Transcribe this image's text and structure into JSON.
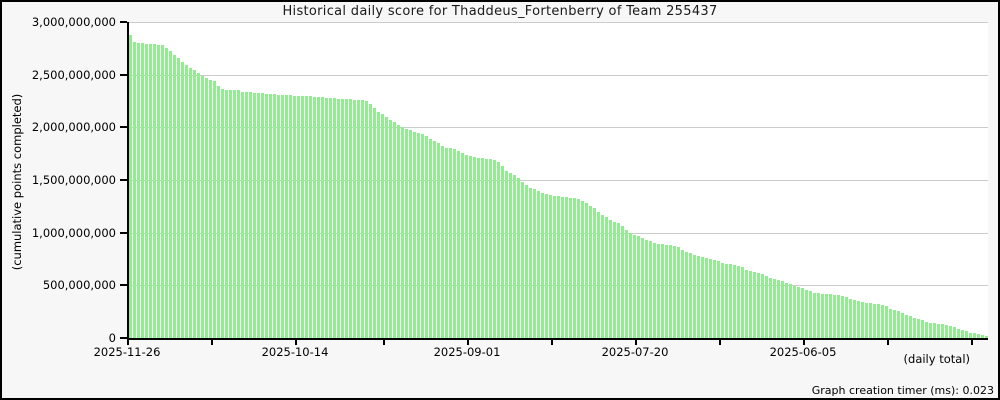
{
  "window": {
    "background": "#f7f7f7",
    "border_color": "#000000"
  },
  "footer": {
    "timer_label": "Graph creation timer (ms): 0.023"
  },
  "chart_data": {
    "type": "bar",
    "title": "Historical daily score for Thaddeus_Fortenberry of Team 255437",
    "ylabel": "(cumulative points completed)",
    "xlabel": "(daily total)",
    "ylim": [
      0,
      3000000000
    ],
    "grid": true,
    "legend": "none",
    "bar_color": "#90EE90",
    "grid_color": "#cccccc",
    "axis_color": "#000000",
    "y_tick_labels": [
      "3,000,000,000",
      "2,500,000,000",
      "2,000,000,000",
      "1,500,000,000",
      "1,000,000,000",
      "500,000,000",
      "0"
    ],
    "x_tick_labels": [
      {
        "label": "2025-11-26",
        "index": 0
      },
      {
        "label": "2025-10-14",
        "index": 42
      },
      {
        "label": "2025-09-01",
        "index": 85
      },
      {
        "label": "2025-07-20",
        "index": 127
      },
      {
        "label": "2025-06-05",
        "index": 169
      }
    ],
    "minor_tick_indices": [
      21,
      64,
      106,
      148,
      190,
      211
    ],
    "value_unit": "billions of points, one bar per day, newest (2025-11-26) on the left",
    "values_billions": [
      2.88,
      2.81,
      2.8,
      2.8,
      2.79,
      2.79,
      2.79,
      2.78,
      2.78,
      2.75,
      2.72,
      2.69,
      2.66,
      2.62,
      2.59,
      2.56,
      2.54,
      2.52,
      2.49,
      2.47,
      2.45,
      2.44,
      2.39,
      2.36,
      2.35,
      2.35,
      2.35,
      2.35,
      2.34,
      2.34,
      2.34,
      2.33,
      2.33,
      2.33,
      2.32,
      2.32,
      2.32,
      2.31,
      2.31,
      2.31,
      2.31,
      2.3,
      2.3,
      2.3,
      2.3,
      2.3,
      2.29,
      2.29,
      2.29,
      2.28,
      2.28,
      2.28,
      2.27,
      2.27,
      2.27,
      2.27,
      2.26,
      2.26,
      2.26,
      2.25,
      2.22,
      2.18,
      2.15,
      2.13,
      2.1,
      2.07,
      2.05,
      2.02,
      2.0,
      1.98,
      1.97,
      1.96,
      1.95,
      1.94,
      1.92,
      1.89,
      1.87,
      1.85,
      1.82,
      1.8,
      1.8,
      1.79,
      1.78,
      1.76,
      1.74,
      1.73,
      1.72,
      1.71,
      1.71,
      1.7,
      1.7,
      1.69,
      1.67,
      1.63,
      1.59,
      1.57,
      1.55,
      1.52,
      1.48,
      1.45,
      1.42,
      1.41,
      1.4,
      1.38,
      1.37,
      1.36,
      1.35,
      1.35,
      1.34,
      1.34,
      1.33,
      1.33,
      1.32,
      1.3,
      1.28,
      1.25,
      1.23,
      1.2,
      1.17,
      1.15,
      1.12,
      1.1,
      1.09,
      1.06,
      1.03,
      1.0,
      0.98,
      0.97,
      0.95,
      0.93,
      0.92,
      0.9,
      0.89,
      0.89,
      0.88,
      0.88,
      0.87,
      0.86,
      0.84,
      0.82,
      0.81,
      0.79,
      0.78,
      0.77,
      0.76,
      0.75,
      0.74,
      0.73,
      0.71,
      0.7,
      0.7,
      0.69,
      0.68,
      0.67,
      0.65,
      0.64,
      0.63,
      0.62,
      0.61,
      0.59,
      0.57,
      0.56,
      0.55,
      0.54,
      0.52,
      0.51,
      0.49,
      0.48,
      0.47,
      0.46,
      0.45,
      0.43,
      0.43,
      0.42,
      0.42,
      0.42,
      0.41,
      0.41,
      0.4,
      0.39,
      0.37,
      0.36,
      0.35,
      0.34,
      0.33,
      0.33,
      0.32,
      0.32,
      0.31,
      0.3,
      0.28,
      0.27,
      0.26,
      0.24,
      0.22,
      0.21,
      0.19,
      0.18,
      0.17,
      0.15,
      0.14,
      0.14,
      0.13,
      0.13,
      0.12,
      0.11,
      0.1,
      0.09,
      0.08,
      0.07,
      0.05,
      0.05,
      0.04,
      0.03,
      0.02
    ]
  }
}
